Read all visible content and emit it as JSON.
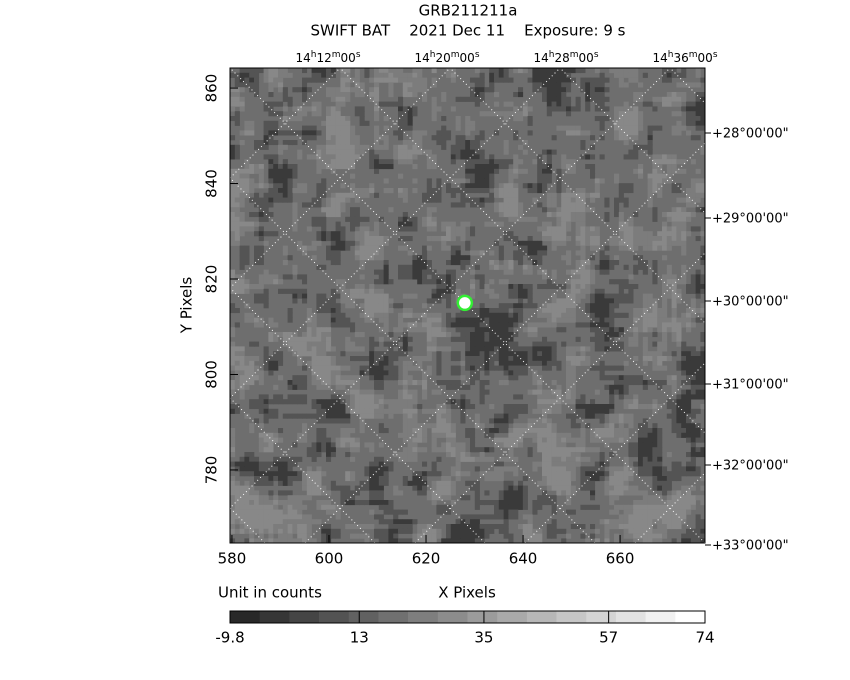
{
  "chart_data": {
    "type": "image",
    "title": "GRB211211a",
    "subtitle": "SWIFT BAT    2021 Dec 11    Exposure: 9 s",
    "xlabel": "X Pixels",
    "ylabel": "Y Pixels",
    "xlim": [
      579.6,
      677.5
    ],
    "ylim": [
      764.7,
      864.2
    ],
    "xticks": [
      580,
      600,
      620,
      640,
      660
    ],
    "yticks": [
      780,
      800,
      820,
      840,
      860
    ],
    "ra_labels": [
      [
        "14",
        "h",
        "12",
        "m",
        "00",
        "s"
      ],
      [
        "14",
        "h",
        "20",
        "m",
        "00",
        "s"
      ],
      [
        "14",
        "h",
        "28",
        "m",
        "00",
        "s"
      ],
      [
        "14",
        "h",
        "36",
        "m",
        "00",
        "s"
      ]
    ],
    "dec_labels": [
      "+28°00'00\"",
      "+29°00'00\"",
      "+30°00'00\"",
      "+31°00'00\"",
      "+32°00'00\"",
      "+33°00'00\""
    ],
    "source": {
      "x": 628,
      "y": 815,
      "color": "#33ee33"
    },
    "colorbar": {
      "label": "Unit in counts",
      "ticks": [
        -9.8,
        13,
        35,
        57,
        74
      ]
    }
  }
}
